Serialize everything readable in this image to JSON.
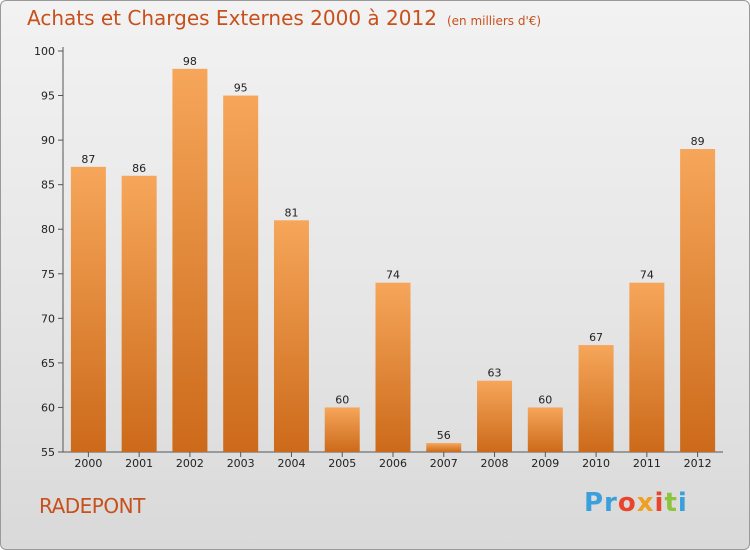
{
  "header": {
    "title": "Achats et Charges Externes 2000 à 2012",
    "unit": "(en milliers d'€)"
  },
  "footer": {
    "commune": "RADEPONT",
    "logo": [
      "Pr",
      "o",
      "x",
      "i",
      "t",
      "i"
    ]
  },
  "colors": {
    "accent": "#c8501c",
    "bar_top": "#f6a65a",
    "bar_bottom": "#cc6a1a"
  },
  "chart_data": {
    "type": "bar",
    "title": "Achats et Charges Externes 2000 à 2012",
    "subtitle": "(en milliers d'€)",
    "categories": [
      "2000",
      "2001",
      "2002",
      "2003",
      "2004",
      "2005",
      "2006",
      "2007",
      "2008",
      "2009",
      "2010",
      "2011",
      "2012"
    ],
    "values": [
      87,
      86,
      98,
      95,
      81,
      60,
      74,
      56,
      63,
      60,
      67,
      74,
      89
    ],
    "ylim": [
      55,
      100
    ],
    "yticks": [
      55,
      60,
      65,
      70,
      75,
      80,
      85,
      90,
      95,
      100
    ],
    "grid": false,
    "legend": "none"
  }
}
